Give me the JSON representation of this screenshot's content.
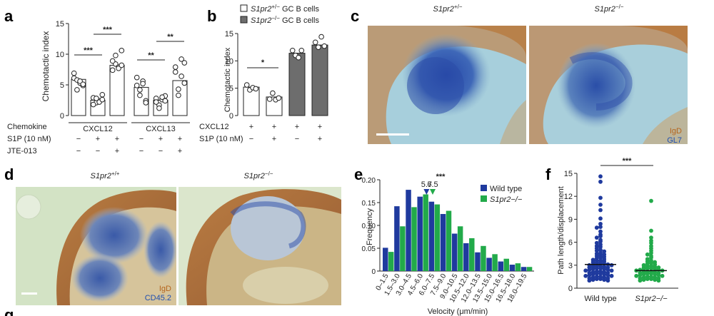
{
  "panel_labels": {
    "a": "a",
    "b": "b",
    "c": "c",
    "d": "d",
    "e": "e",
    "f": "f",
    "g": "g"
  },
  "colors": {
    "wild_type": "#1f3a9e",
    "s1pr2_ko": "#22aa4a",
    "grey_bar": "#6d6d6d",
    "igd": "#b5651d",
    "gl7": "#1f4fb0",
    "cd45": "#1f4fb0",
    "tissue_bg_c": "#a9d0dc",
    "tissue_bg_d": "#cfe0bf"
  },
  "chart_data": [
    {
      "panel": "a",
      "type": "bar",
      "ylabel": "Chemotactic index",
      "ylim": [
        0,
        15
      ],
      "yticks": [
        "0",
        "5",
        "10",
        "15"
      ],
      "bars": [
        5.9,
        2.5,
        8.2,
        4.6,
        2.5,
        5.7
      ],
      "points": [
        [
          6.1,
          5.8,
          5.3,
          4.9,
          6.9,
          4.2,
          5.6,
          5.1
        ],
        [
          2.9,
          2.1,
          2.4,
          3.4,
          1.8,
          2.8,
          2.2,
          2.6
        ],
        [
          7.4,
          8.4,
          7.9,
          10.6,
          8.9,
          9.8,
          7.7,
          8.2
        ],
        [
          4.9,
          3.3,
          5.6,
          2.4,
          6.2,
          4.2,
          5.2,
          2.1
        ],
        [
          2.8,
          1.7,
          2.6,
          3.2,
          2.2,
          1.2,
          3.0,
          2.4
        ],
        [
          7.1,
          4.3,
          9.2,
          5.3,
          7.9,
          3.3,
          6.4,
          8.6
        ]
      ],
      "significance": [
        "***",
        "***",
        "**",
        "**"
      ],
      "row_labels": {
        "chemokine": "Chemokine",
        "s1p": "S1P (10 nM)",
        "jte": "JTE-013"
      },
      "chemokine_groups": [
        "CXCL12",
        "CXCL13"
      ],
      "s1p_marks": [
        "−",
        "+",
        "+",
        "−",
        "+",
        "+"
      ],
      "jte_marks": [
        "−",
        "−",
        "+",
        "−",
        "−",
        "+"
      ]
    },
    {
      "panel": "b",
      "type": "bar",
      "ylabel": "Chemotactic index",
      "ylim": [
        0,
        15
      ],
      "yticks": [
        "0",
        "5",
        "10",
        "15"
      ],
      "legend": [
        {
          "gene": "S1pr2",
          "sup": "+/−",
          "rest": " GC B cells"
        },
        {
          "gene": "S1pr2",
          "sup": "−/−",
          "rest": " GC B cells"
        }
      ],
      "bars": [
        5.2,
        3.4,
        11.4,
        12.9
      ],
      "bar_fill": [
        "white",
        "white",
        "grey",
        "grey"
      ],
      "points": [
        [
          5.6,
          4.7,
          5.1,
          4.9
        ],
        [
          3.0,
          4.1,
          2.9,
          3.2
        ],
        [
          11.9,
          11.0,
          10.6,
          11.9
        ],
        [
          13.4,
          12.5,
          14.4,
          12.7
        ]
      ],
      "significance": [
        "*"
      ],
      "row_labels": {
        "cxcl12": "CXCL12",
        "s1p": "S1P (10 nM)"
      },
      "cxcl12_marks": [
        "+",
        "+",
        "+",
        "+"
      ],
      "s1p_marks": [
        "−",
        "+",
        "−",
        "+"
      ]
    },
    {
      "panel": "e",
      "type": "bar",
      "xlabel": "Velocity (μm/min)",
      "ylabel": "Frequency",
      "ylim": [
        0,
        0.2
      ],
      "yticks": [
        "0",
        "0.05",
        "0.10",
        "0.15",
        "0.20"
      ],
      "categories": [
        "0–1.5",
        "1.5–3.0",
        "3.0–4.5",
        "4.5–6.0",
        "6.0–7.5",
        "7.5–9.0",
        "9.0–10.5",
        "10.5–12.0",
        "12.0–13.5",
        "13.5–15.0",
        "15.0–16.5",
        "16.5–18.0",
        "18.0–19.5"
      ],
      "series": [
        {
          "name": "Wild type",
          "values": [
            0.051,
            0.142,
            0.178,
            0.163,
            0.152,
            0.125,
            0.082,
            0.061,
            0.041,
            0.029,
            0.021,
            0.014,
            0.009
          ]
        },
        {
          "name": "S1pr2−/−",
          "values": [
            0.042,
            0.098,
            0.14,
            0.168,
            0.146,
            0.132,
            0.098,
            0.072,
            0.055,
            0.037,
            0.027,
            0.017,
            0.009
          ]
        }
      ],
      "medians": [
        "5.7",
        "6.5"
      ],
      "median_positions": [
        5.7,
        6.5
      ],
      "significance": "***"
    },
    {
      "panel": "f",
      "type": "scatter",
      "ylabel": "Path length/displacement",
      "ylim": [
        0,
        15
      ],
      "yticks": [
        "0",
        "3",
        "6",
        "9",
        "12",
        "15"
      ],
      "categories": [
        "Wild type",
        "S1pr2−/−"
      ],
      "groups": [
        {
          "name": "Wild type",
          "median": 3.1,
          "values": [
            14.6,
            13.9,
            11.8,
            10.9,
            10.2,
            9.1,
            8.4,
            8.0,
            7.9,
            7.4,
            7.0,
            6.8,
            6.6,
            6.3,
            6.1,
            5.9,
            5.7,
            5.5,
            5.4,
            5.2,
            5.0,
            4.9,
            4.8,
            4.6,
            4.5,
            4.4,
            4.3,
            4.2,
            4.1,
            4.0,
            3.9,
            3.8,
            3.7,
            3.6,
            3.6,
            3.5,
            3.4,
            3.3,
            3.3,
            3.2,
            3.1,
            3.1,
            3.0,
            3.0,
            2.9,
            2.9,
            2.8,
            2.8,
            2.7,
            2.7,
            2.6,
            2.6,
            2.5,
            2.5,
            2.4,
            2.4,
            2.3,
            2.3,
            2.2,
            2.2,
            2.1,
            2.1,
            2.0,
            2.0,
            1.9,
            1.9,
            1.8,
            1.8,
            1.7,
            1.7,
            1.6,
            1.6,
            1.5,
            1.5,
            1.4,
            1.4,
            1.3,
            1.3,
            1.2,
            1.2,
            1.1,
            1.1,
            1.0,
            1.0
          ]
        },
        {
          "name": "S1pr2−/−",
          "median": 2.3,
          "values": [
            11.4,
            7.5,
            6.6,
            6.2,
            5.9,
            5.5,
            5.2,
            4.9,
            4.6,
            4.4,
            4.2,
            4.0,
            3.8,
            3.6,
            3.5,
            3.4,
            3.3,
            3.2,
            3.1,
            3.0,
            2.9,
            2.9,
            2.8,
            2.7,
            2.7,
            2.6,
            2.6,
            2.5,
            2.5,
            2.4,
            2.4,
            2.3,
            2.3,
            2.2,
            2.2,
            2.1,
            2.1,
            2.0,
            2.0,
            1.9,
            1.9,
            1.8,
            1.8,
            1.7,
            1.7,
            1.6,
            1.6,
            1.5,
            1.5,
            1.4,
            1.4,
            1.3,
            1.3,
            1.2,
            1.2,
            1.1,
            1.1,
            1.0,
            1.0
          ]
        }
      ],
      "significance": "***"
    }
  ],
  "micrographs": {
    "c": {
      "left_label": {
        "gene": "S1pr2",
        "sup": "+/−"
      },
      "right_label": {
        "gene": "S1pr2",
        "sup": "−/−"
      },
      "stain1": "IgD",
      "stain2": "GL7"
    },
    "d": {
      "left_label": {
        "gene": "S1pr2",
        "sup": "+/+"
      },
      "right_label": {
        "gene": "S1pr2",
        "sup": "−/−"
      },
      "stain1": "IgD",
      "stain2": "CD45.2"
    }
  }
}
